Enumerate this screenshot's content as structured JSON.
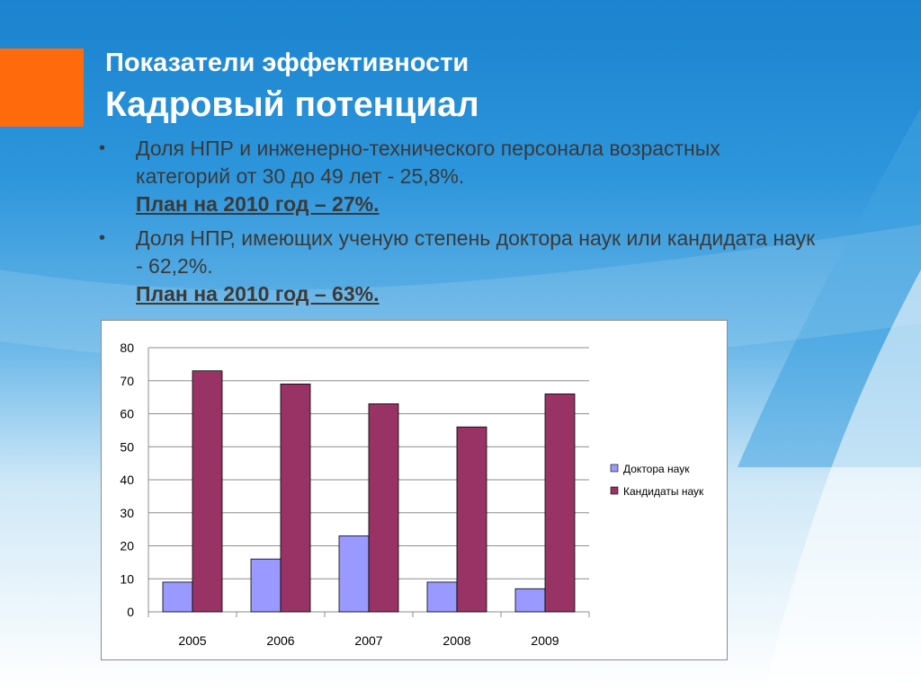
{
  "title": {
    "line1": "Показатели эффективности",
    "line2": "Кадровый потенциал"
  },
  "bullets": [
    {
      "text": "Доля НПР и инженерно-технического персонала возрастных категорий от 30 до 49 лет - 25,8%.",
      "plan": "План на 2010 год – 27%."
    },
    {
      "text": "Доля НПР, имеющих ученую степень доктора наук или кандидата наук - 62,2%.",
      "plan": "План на 2010 год – 63%."
    }
  ],
  "bullet_glyph": "•",
  "colors": {
    "accent": "#ff6a0d",
    "series_doctors": "#9999ff",
    "series_candidates": "#993366"
  },
  "chart_data": {
    "type": "bar",
    "categories": [
      "2005",
      "2006",
      "2007",
      "2008",
      "2009"
    ],
    "series": [
      {
        "name": "Доктора наук",
        "values": [
          9,
          16,
          23,
          9,
          7
        ]
      },
      {
        "name": "Кандидаты наук",
        "values": [
          73,
          69,
          63,
          56,
          66
        ]
      }
    ],
    "ylim": [
      0,
      80
    ],
    "yticks": [
      0,
      10,
      20,
      30,
      40,
      50,
      60,
      70,
      80
    ],
    "grid": true,
    "legend": "right"
  }
}
